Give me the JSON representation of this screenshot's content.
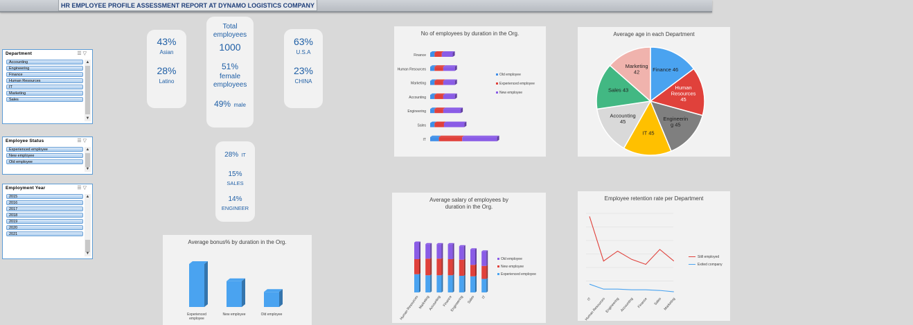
{
  "title": "HR EMPLOYEE PROFILE ASSESSMENT REPORT AT DYNAMO LOGISTICS COMPANY",
  "slicers": {
    "department": {
      "title": "Department",
      "items": [
        "Accounting",
        "Engineering",
        "Finance",
        "Human Resources",
        "IT",
        "Marketing",
        "Sales"
      ]
    },
    "status": {
      "title": "Employee Status",
      "items": [
        "Experienced employee",
        "New employee",
        "Old employee"
      ]
    },
    "year": {
      "title": "Employment Year",
      "items": [
        "2015",
        "2016",
        "2017",
        "2018",
        "2019",
        "2020",
        "2021"
      ]
    }
  },
  "kpi": {
    "asian_pct": "43%",
    "asian_label": "Asian",
    "latino_pct": "28%",
    "latino_label": "Latino",
    "total_label": "Total employees",
    "total_value": "1000",
    "female_pct": "51%",
    "female_label": "female employees",
    "male_pct": "49%",
    "male_label": "male",
    "usa_pct": "63%",
    "usa_label": "U.S.A",
    "china_pct": "23%",
    "china_label": "CHINA",
    "it_pct": "28%",
    "it_label": "IT",
    "sales_pct": "15%",
    "sales_label": "SALES",
    "eng_pct": "14%",
    "eng_label": "ENGINEER"
  },
  "colors": {
    "blue": "#3f8fe8",
    "red": "#e0413b",
    "purple": "#8a5ce6",
    "teal": "#42b883",
    "yellow": "#ffc000",
    "gray": "#7f7f7f",
    "lightgray": "#d9d9d9",
    "pink": "#f0b3ad",
    "lightblue": "#4aa3f0"
  },
  "chart_data": [
    {
      "id": "duration_bar",
      "type": "bar",
      "orientation": "horizontal",
      "stacked": true,
      "title": "No of employees by duration in the Org.",
      "categories": [
        "Finance",
        "Human Resources",
        "Marketing",
        "Accounting",
        "Engineering",
        "Sales",
        "IT"
      ],
      "series": [
        {
          "name": "Old employee",
          "values": [
            6,
            6,
            6,
            6,
            6,
            6,
            12
          ]
        },
        {
          "name": "Experienced employee",
          "values": [
            10,
            12,
            12,
            12,
            12,
            13,
            32
          ]
        },
        {
          "name": "New employee",
          "values": [
            15,
            16,
            16,
            16,
            24,
            28,
            48
          ]
        }
      ],
      "legend": "right"
    },
    {
      "id": "age_pie",
      "type": "pie",
      "title": "Average age in each Department",
      "labels": [
        "Finance",
        "Human Resources",
        "Engineering",
        "IT",
        "Accounting",
        "Sales",
        "Marketing"
      ],
      "display_labels": [
        "Finance 46",
        "Human Resources 45",
        "Engineering 45",
        "IT 45",
        "Accounting 45",
        "Sales 43",
        "Marketing 42"
      ],
      "values": [
        46,
        45,
        45,
        45,
        45,
        43,
        42
      ]
    },
    {
      "id": "bonus_bar",
      "type": "bar",
      "title": "Average bonus% by duration in the Org.",
      "categories": [
        "Experienced employee",
        "New employee",
        "Old employee"
      ],
      "values": [
        10,
        6,
        3.5
      ],
      "ylim": [
        0,
        11
      ]
    },
    {
      "id": "salary_bar",
      "type": "bar",
      "stacked": true,
      "title": "Average salary of employees by duration in the Org.",
      "categories": [
        "Human Resources",
        "Marketing",
        "Accounting",
        "Finance",
        "Engineering",
        "Sales",
        "IT"
      ],
      "series": [
        {
          "name": "Experienced employee",
          "values": [
            35,
            33,
            33,
            33,
            32,
            31,
            26
          ]
        },
        {
          "name": "New employee",
          "values": [
            29,
            32,
            32,
            31,
            31,
            22,
            25
          ]
        },
        {
          "name": "Old employee",
          "values": [
            32,
            28,
            28,
            29,
            26,
            30,
            28
          ]
        }
      ],
      "legend": "right"
    },
    {
      "id": "retention_line",
      "type": "line",
      "title": "Employee retention rate per Department",
      "categories": [
        "IT",
        "Human Resources",
        "Engineering",
        "Accounting",
        "Finance",
        "Sales",
        "Marketing"
      ],
      "series": [
        {
          "name": "Still employed",
          "values": [
            230,
            95,
            125,
            100,
            85,
            130,
            95
          ]
        },
        {
          "name": "Exited company",
          "values": [
            25,
            10,
            10,
            8,
            8,
            6,
            2
          ]
        }
      ],
      "ylim": [
        0,
        260
      ],
      "legend": "right"
    }
  ]
}
